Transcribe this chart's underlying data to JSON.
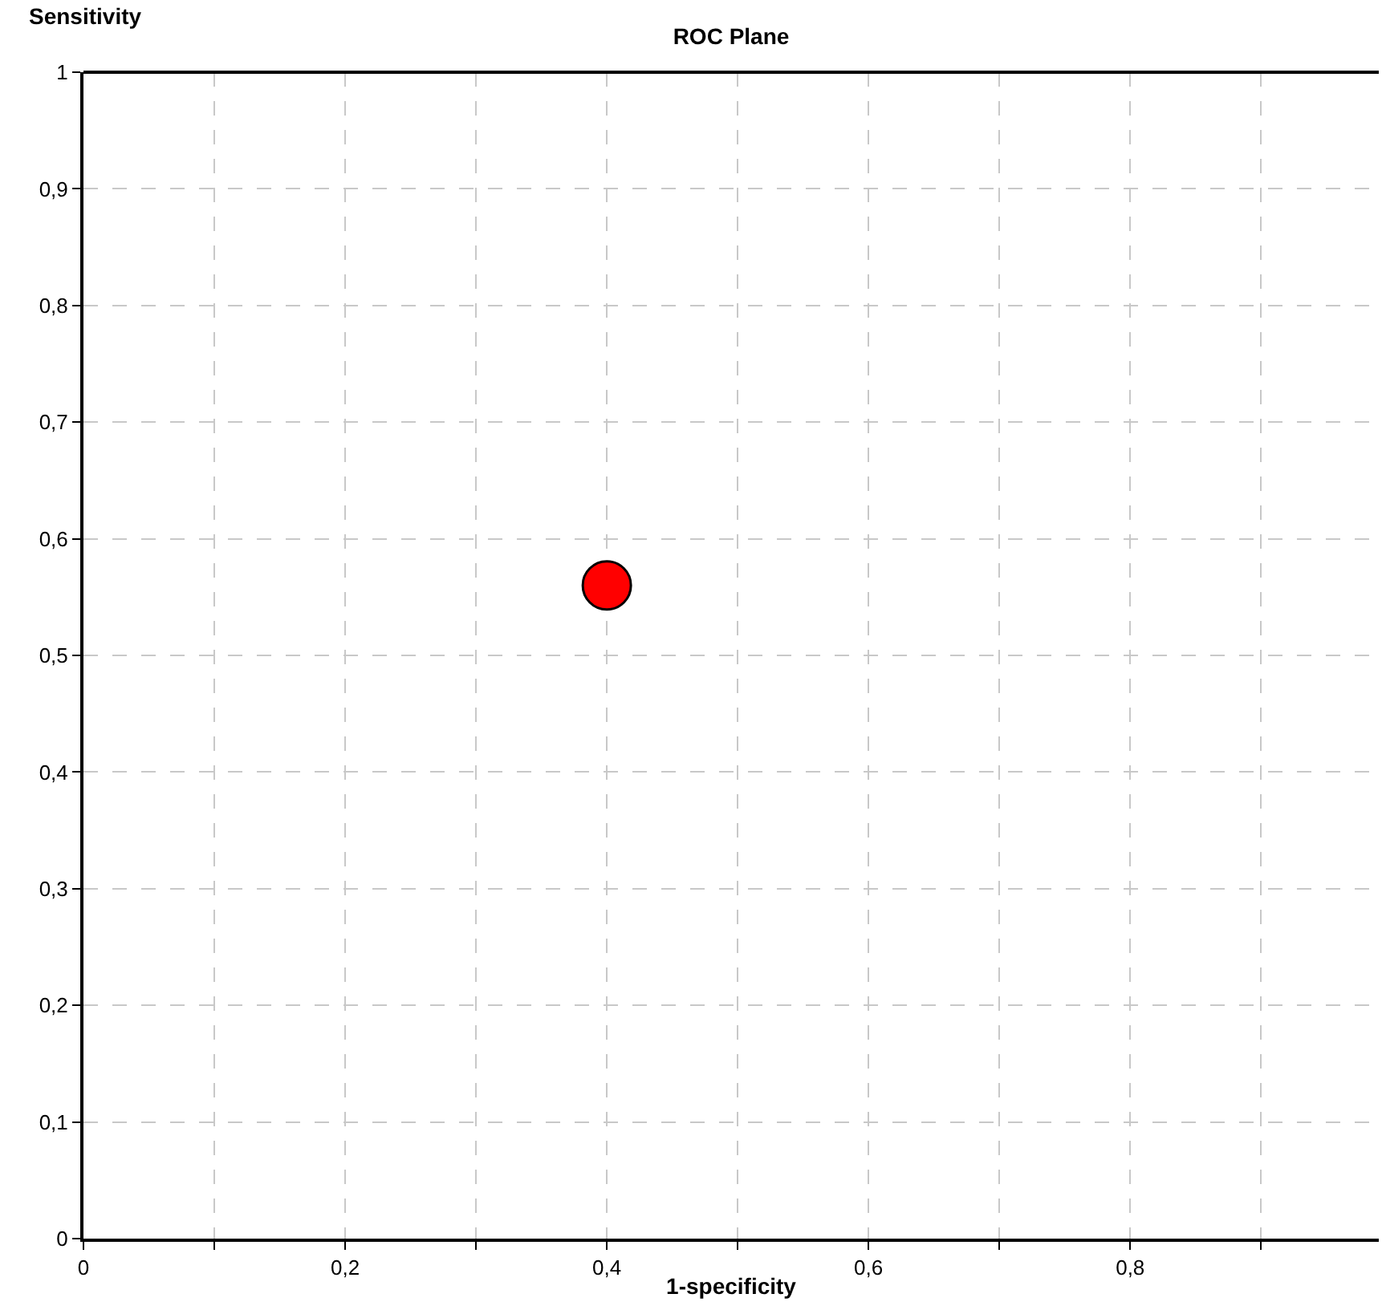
{
  "chart_data": {
    "type": "scatter",
    "title": "ROC Plane",
    "xlabel": "1-specificity",
    "ylabel": "Sensitivity",
    "x": [
      0.4
    ],
    "series": [
      {
        "color": "#ff0000",
        "values": [
          0.56
        ]
      }
    ],
    "marker": "circle",
    "grid": true,
    "xlim": [
      0,
      0.99
    ],
    "ylim": [
      0,
      1
    ],
    "xticks": [
      0,
      {
        "value": 0.1,
        "label": null
      },
      {
        "value": 0.2,
        "label": "0,2"
      },
      {
        "value": 0.3,
        "label": null
      },
      {
        "value": 0.4,
        "label": "0,4"
      },
      {
        "value": 0.5,
        "label": null
      },
      {
        "value": 0.6,
        "label": "0,6"
      },
      {
        "value": 0.7,
        "label": null
      },
      {
        "value": 0.8,
        "label": "0,8"
      },
      {
        "value": 0.9,
        "label": null
      }
    ],
    "yticks": [
      0,
      {
        "value": 0.1,
        "label": "0,1"
      },
      {
        "value": 0.2,
        "label": "0,2"
      },
      {
        "value": 0.3,
        "label": "0,3"
      },
      {
        "value": 0.4,
        "label": "0,4"
      },
      {
        "value": 0.5,
        "label": "0,5"
      },
      {
        "value": 0.6,
        "label": "0,6"
      },
      {
        "value": 0.7,
        "label": "0,7"
      },
      {
        "value": 0.8,
        "label": "0,8"
      },
      {
        "value": 0.9,
        "label": "0,9"
      },
      1
    ]
  }
}
